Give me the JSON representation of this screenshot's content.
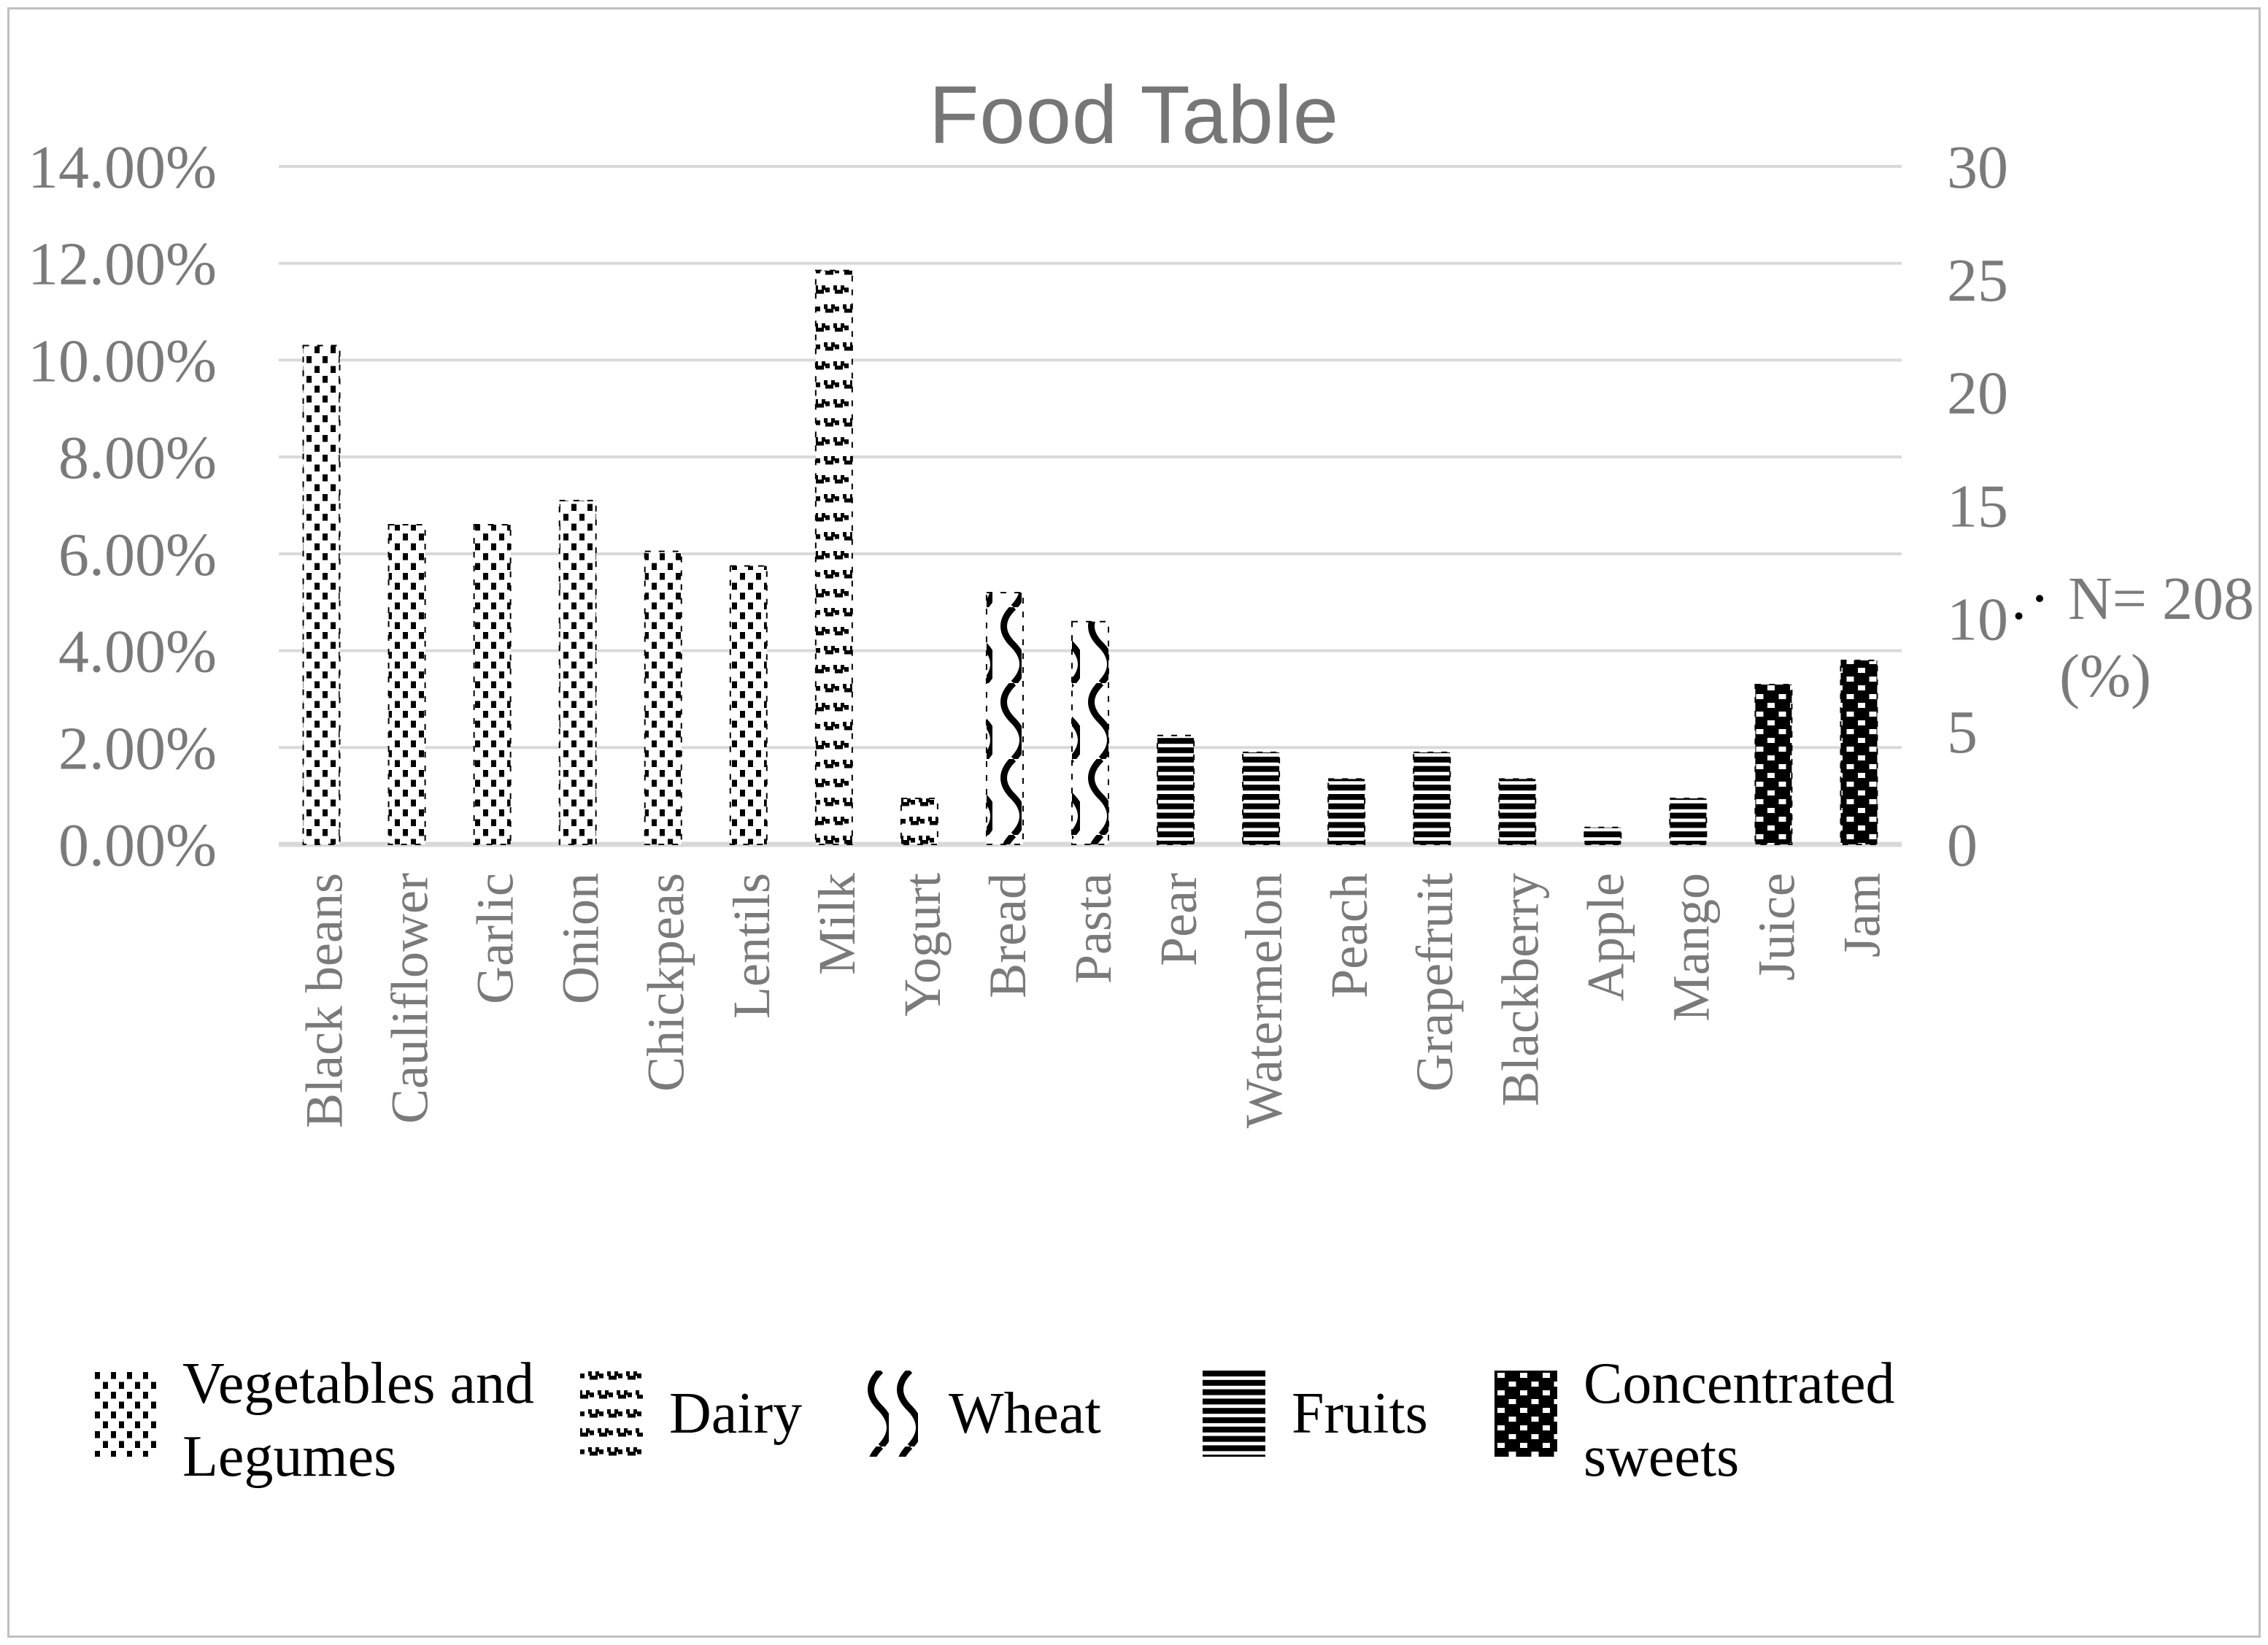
{
  "chart_data": {
    "type": "bar",
    "title": "Food Table",
    "grid": true,
    "legend_position": "bottom",
    "left_axis": {
      "min": 0,
      "max": 14,
      "tick_step": 2,
      "unit": "%",
      "ticks": [
        "14.00%",
        "12.00%",
        "10.00%",
        "8.00%",
        "6.00%",
        "4.00%",
        "2.00%",
        "0.00%"
      ]
    },
    "right_axis": {
      "min": 0,
      "max": 30,
      "tick_step": 5,
      "ticks": [
        "30",
        "25",
        "20",
        "15",
        "10",
        "5",
        "0"
      ]
    },
    "annotation": {
      "dots": ".·",
      "line1": "N= 208",
      "line2": "(%)"
    },
    "bars": [
      {
        "category": "Black beans",
        "value": 10.3,
        "group": "Vegetables and Legumes",
        "pattern": "veg"
      },
      {
        "category": "Cauliflower",
        "value": 6.6,
        "group": "Vegetables and Legumes",
        "pattern": "veg"
      },
      {
        "category": "Garlic",
        "value": 6.6,
        "group": "Vegetables and Legumes",
        "pattern": "veg"
      },
      {
        "category": "Onion",
        "value": 7.1,
        "group": "Vegetables and Legumes",
        "pattern": "veg"
      },
      {
        "category": "Chickpeas",
        "value": 6.05,
        "group": "Vegetables and Legumes",
        "pattern": "veg"
      },
      {
        "category": "Lentils",
        "value": 5.75,
        "group": "Vegetables and Legumes",
        "pattern": "veg"
      },
      {
        "category": "Milk",
        "value": 11.85,
        "group": "Dairy",
        "pattern": "dairy"
      },
      {
        "category": "Yogurt",
        "value": 0.95,
        "group": "Dairy",
        "pattern": "dairy"
      },
      {
        "category": "Bread",
        "value": 5.2,
        "group": "Wheat",
        "pattern": "wheat"
      },
      {
        "category": "Pasta",
        "value": 4.6,
        "group": "Wheat",
        "pattern": "wheat"
      },
      {
        "category": "Pear",
        "value": 2.25,
        "group": "Fruits",
        "pattern": "fruit"
      },
      {
        "category": "Watermelon",
        "value": 1.9,
        "group": "Fruits",
        "pattern": "fruit"
      },
      {
        "category": "Peach",
        "value": 1.35,
        "group": "Fruits",
        "pattern": "fruit"
      },
      {
        "category": "Grapefruit",
        "value": 1.9,
        "group": "Fruits",
        "pattern": "fruit"
      },
      {
        "category": "Blackberry",
        "value": 1.35,
        "group": "Fruits",
        "pattern": "fruit"
      },
      {
        "category": "Apple",
        "value": 0.35,
        "group": "Fruits",
        "pattern": "fruit"
      },
      {
        "category": "Mango",
        "value": 0.95,
        "group": "Fruits",
        "pattern": "fruit"
      },
      {
        "category": "Juice",
        "value": 3.3,
        "group": "Concentrated sweets",
        "pattern": "sweet"
      },
      {
        "category": "Jam",
        "value": 3.8,
        "group": "Concentrated sweets",
        "pattern": "sweet"
      }
    ],
    "legend": [
      {
        "pattern": "veg",
        "lines": [
          "Vegetables and",
          "Legumes"
        ]
      },
      {
        "pattern": "dairy",
        "lines": [
          "Dairy"
        ]
      },
      {
        "pattern": "wheat",
        "lines": [
          "Wheat"
        ]
      },
      {
        "pattern": "fruit",
        "lines": [
          "Fruits"
        ]
      },
      {
        "pattern": "sweet",
        "lines": [
          "Concentrated",
          "sweets"
        ]
      }
    ],
    "colors": {
      "text_gray": "#7a7a7a",
      "title_gray": "#767676",
      "gridline": "#d9d9d9",
      "pattern_black": "#000000",
      "frame_border": "#bfbfbf",
      "background": "#ffffff"
    }
  }
}
